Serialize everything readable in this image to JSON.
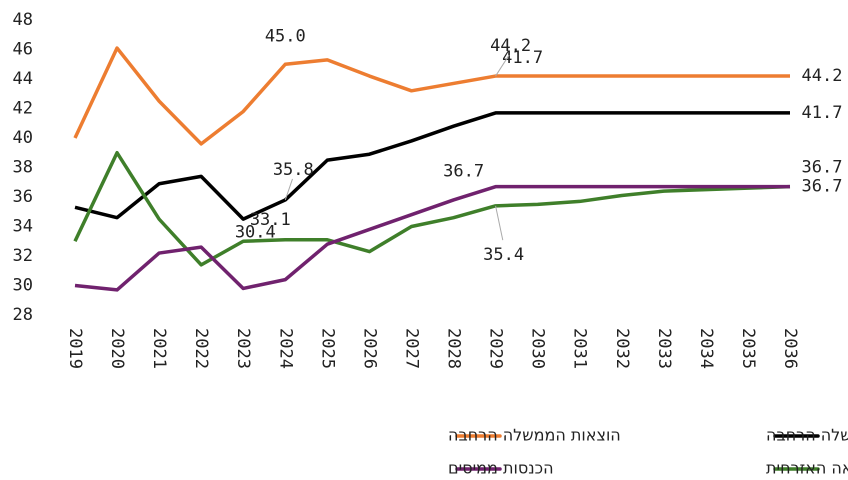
{
  "chart_data": {
    "type": "line",
    "x": [
      2019,
      2020,
      2021,
      2022,
      2023,
      2024,
      2025,
      2026,
      2027,
      2028,
      2029,
      2030,
      2031,
      2032,
      2033,
      2034,
      2035,
      2036
    ],
    "xlim": [
      2019,
      2036
    ],
    "xticks": [
      2019,
      2020,
      2021,
      2022,
      2023,
      2024,
      2025,
      2026,
      2027,
      2028,
      2029,
      2030,
      2031,
      2032,
      2033,
      2034,
      2035,
      2036
    ],
    "ylim": [
      28,
      48
    ],
    "yticks": [
      28,
      30,
      32,
      34,
      36,
      38,
      40,
      42,
      44,
      46,
      48
    ],
    "grid": false,
    "series": [
      {
        "name": "הכנסות הממשלה הרחבה",
        "color": "#000000",
        "values": [
          35.3,
          34.6,
          36.9,
          37.4,
          34.5,
          35.8,
          38.5,
          38.9,
          39.8,
          40.8,
          41.7,
          41.7,
          41.7,
          41.7,
          41.7,
          41.7,
          41.7,
          41.7
        ],
        "value_labels": [
          null,
          null,
          null,
          null,
          null,
          "35.8",
          null,
          null,
          null,
          null,
          "41.7",
          null,
          null,
          null,
          null,
          null,
          null,
          "41.7"
        ]
      },
      {
        "name": "הוצאות הממשלה הרחבה",
        "color": "#ed7d31",
        "values": [
          40.0,
          46.1,
          42.5,
          39.6,
          41.8,
          45.0,
          45.3,
          44.2,
          43.2,
          43.7,
          44.2,
          44.2,
          44.2,
          44.2,
          44.2,
          44.2,
          44.2,
          44.2
        ],
        "value_labels": [
          null,
          null,
          null,
          null,
          null,
          "45.0",
          null,
          null,
          null,
          null,
          "44.2",
          null,
          null,
          null,
          null,
          null,
          null,
          "44.2"
        ]
      },
      {
        "name": "ההוצאה האזרחית",
        "color": "#3f7f2a",
        "values": [
          33.0,
          39.0,
          34.5,
          31.4,
          33.0,
          33.1,
          33.1,
          32.3,
          34.0,
          34.6,
          35.4,
          35.5,
          35.7,
          36.1,
          36.4,
          36.5,
          36.6,
          36.7
        ],
        "value_labels": [
          null,
          null,
          null,
          null,
          null,
          "33.1",
          null,
          null,
          null,
          null,
          "35.4",
          null,
          null,
          null,
          null,
          null,
          null,
          "36.7"
        ]
      },
      {
        "name": "הכנסות ממיסים",
        "color": "#70226e",
        "values": [
          30.0,
          29.7,
          32.2,
          32.6,
          29.8,
          30.4,
          32.8,
          33.8,
          34.8,
          35.8,
          36.7,
          36.7,
          36.7,
          36.7,
          36.7,
          36.7,
          36.7,
          36.7
        ],
        "value_labels": [
          null,
          null,
          null,
          null,
          null,
          "30.4",
          null,
          null,
          null,
          null,
          "36.7",
          null,
          null,
          null,
          null,
          null,
          null,
          "36.7"
        ]
      }
    ]
  }
}
